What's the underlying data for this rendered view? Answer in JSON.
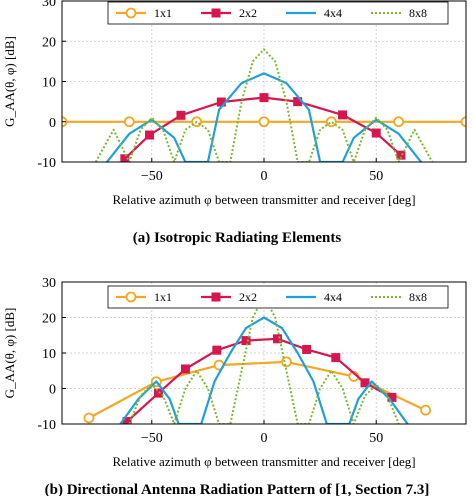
{
  "chart_data": [
    {
      "type": "line",
      "caption": "(a) Isotropic Radiating Elements",
      "xlabel": "Relative azimuth φ between transmitter and receiver [deg]",
      "ylabel": "G_AA(θ, φ) [dB]",
      "xlim": [
        -90,
        90
      ],
      "ylim": [
        -10,
        30
      ],
      "xticks": [
        -50,
        0,
        50
      ],
      "yticks": [
        -10,
        0,
        10,
        20,
        30
      ],
      "legend_position": "top",
      "series": [
        {
          "name": "1x1",
          "color": "#f5a623",
          "marker": "circle",
          "x": [
            -90,
            -60,
            -30,
            0,
            30,
            60,
            90
          ],
          "y": [
            0,
            0,
            0,
            0,
            0,
            0,
            0
          ]
        },
        {
          "name": "2x2",
          "color": "#d6164e",
          "marker": "square",
          "x": [
            -62,
            -51,
            -37,
            -19,
            0,
            15,
            35,
            50,
            61
          ],
          "y": [
            -9.2,
            -3.3,
            1.6,
            4.9,
            6.0,
            5.0,
            1.7,
            -2.8,
            -8.3
          ]
        },
        {
          "name": "4x4",
          "color": "#1ea0dc",
          "marker": "none",
          "x": [
            -70,
            -60,
            -50,
            -40,
            -35,
            -30,
            -25,
            -20,
            -10,
            0,
            10,
            20,
            25,
            30,
            35,
            40,
            50,
            60,
            70
          ],
          "y": [
            -10,
            -3,
            0.5,
            -4,
            -10,
            -10,
            -10,
            3,
            9.6,
            12,
            9.6,
            3,
            -10,
            -10,
            -10,
            -4,
            0.5,
            -3,
            -10
          ]
        },
        {
          "name": "8x8",
          "color": "#7cb82f",
          "marker": "none",
          "dashed": true,
          "x": [
            -75,
            -67,
            -60,
            -55,
            -50,
            -45,
            -40,
            -35,
            -30,
            -25,
            -20,
            -15,
            -10,
            -5,
            0,
            5,
            10,
            15,
            20,
            25,
            30,
            35,
            40,
            45,
            50,
            55,
            60,
            67,
            75
          ],
          "y": [
            -10,
            -2,
            -10,
            -2,
            1,
            -2,
            -10,
            -2,
            0,
            -2,
            -10,
            -10,
            5,
            15,
            18,
            15,
            5,
            -10,
            -10,
            -2,
            0,
            -2,
            -10,
            -2,
            1,
            -2,
            -10,
            -2,
            -10
          ]
        }
      ]
    },
    {
      "type": "line",
      "caption": "(b) Directional Antenna Radiation Pattern of [1, Section 7.3]",
      "xlabel": "Relative azimuth φ between transmitter and receiver [deg]",
      "ylabel": "G_AA(θ, φ) [dB]",
      "xlim": [
        -90,
        90
      ],
      "ylim": [
        -10,
        30
      ],
      "xticks": [
        -50,
        0,
        50
      ],
      "yticks": [
        -10,
        0,
        10,
        20,
        30
      ],
      "legend_position": "top",
      "series": [
        {
          "name": "1x1",
          "color": "#f5a623",
          "marker": "circle",
          "x": [
            -78,
            -48,
            -20,
            10,
            40,
            72
          ],
          "y": [
            -8.3,
            1.9,
            6.6,
            7.5,
            3.4,
            -6.1
          ]
        },
        {
          "name": "2x2",
          "color": "#d6164e",
          "marker": "square",
          "x": [
            -61,
            -47,
            -35,
            -21,
            -8,
            6,
            19,
            32,
            45,
            57
          ],
          "y": [
            -9.3,
            -1.3,
            5.5,
            10.8,
            13.5,
            14.0,
            11.0,
            8.7,
            1.6,
            -2.5
          ]
        },
        {
          "name": "4x4",
          "color": "#1ea0dc",
          "marker": "none",
          "x": [
            -64,
            -56,
            -48,
            -42,
            -38,
            -33,
            -28,
            -22,
            -15,
            -8,
            0,
            8,
            15,
            22,
            28,
            33,
            38,
            42,
            48,
            56,
            64
          ],
          "y": [
            -10,
            -3,
            2,
            -3,
            -10,
            -10,
            -10,
            2,
            10,
            17,
            20,
            17,
            10,
            2,
            -10,
            -10,
            -10,
            -3,
            2,
            -3,
            -10
          ]
        },
        {
          "name": "8x8",
          "color": "#7cb82f",
          "marker": "none",
          "dashed": true,
          "x": [
            -60,
            -55,
            -50,
            -45,
            -40,
            -35,
            -30,
            -25,
            -20,
            -15,
            -10,
            -5,
            0,
            5,
            10,
            15,
            20,
            25,
            30,
            35,
            40,
            45,
            50,
            55,
            60
          ],
          "y": [
            -10,
            -2,
            1,
            -2,
            -10,
            0,
            5,
            0,
            -10,
            -10,
            5,
            20,
            26,
            20,
            5,
            -10,
            -10,
            0,
            5,
            0,
            -10,
            -2,
            1,
            -2,
            -10
          ]
        }
      ]
    }
  ]
}
